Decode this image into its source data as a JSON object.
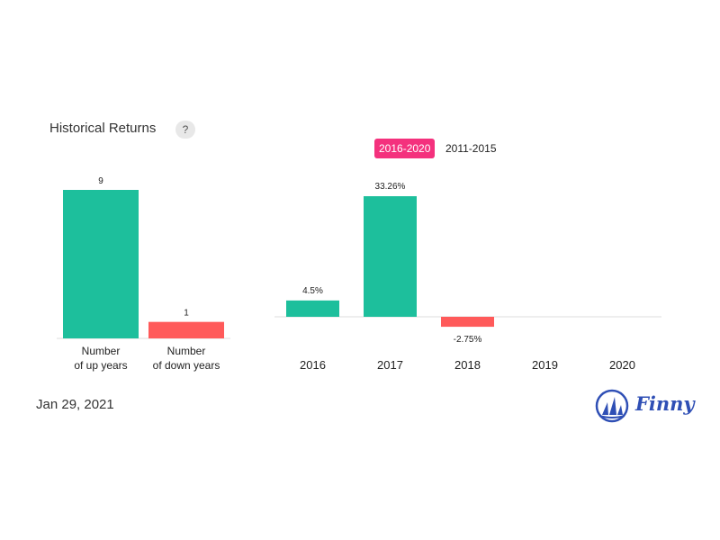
{
  "header": {
    "title": "Historical Returns",
    "help_label": "?"
  },
  "tabs": [
    {
      "label": "2016-2020",
      "active": true
    },
    {
      "label": "2011-2015",
      "active": false
    }
  ],
  "chart_data": [
    {
      "type": "bar",
      "categories": [
        [
          "Number",
          "of up years"
        ],
        [
          "Number",
          "of down years"
        ]
      ],
      "values": [
        9,
        1
      ],
      "value_labels": [
        "9",
        "1"
      ],
      "ylim": [
        0,
        9
      ],
      "colors": [
        "#1dbf9c",
        "#ff5a5a"
      ]
    },
    {
      "type": "bar",
      "categories": [
        "2016",
        "2017",
        "2018",
        "2019",
        "2020"
      ],
      "values": [
        4.5,
        33.26,
        -2.75,
        null,
        null
      ],
      "value_labels": [
        "4.5%",
        "33.26%",
        "-2.75%",
        "",
        ""
      ],
      "ylim": [
        -2.75,
        33.26
      ],
      "colors": {
        "positive": "#1dbf9c",
        "negative": "#ff5a5a"
      }
    }
  ],
  "footer": {
    "date": "Jan 29, 2021",
    "brand": "Finny",
    "brand_color": "#2f4fb5"
  }
}
